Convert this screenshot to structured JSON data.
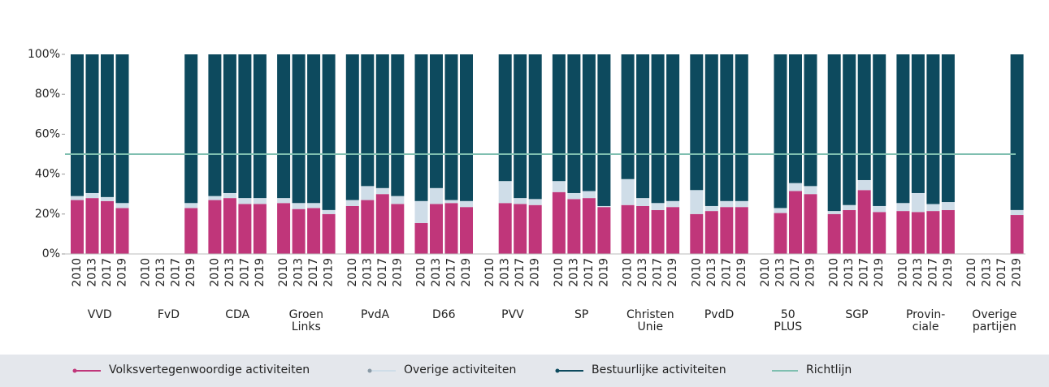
{
  "chart_data": {
    "type": "stacked_bar",
    "groups": [
      "VVD",
      "FvD",
      "CDA",
      "Groen\nLinks",
      "PvdA",
      "D66",
      "PVV",
      "SP",
      "Christen\nUnie",
      "PvdD",
      "50\nPLUS",
      "SGP",
      "Provin-\nciale",
      "Overige\npartijen"
    ],
    "categories": [
      "2010",
      "2013",
      "2017",
      "2019",
      "2010",
      "2013",
      "2017",
      "2019",
      "2010",
      "2013",
      "2017",
      "2019",
      "2010",
      "2013",
      "2017",
      "2019",
      "2010",
      "2013",
      "2017",
      "2019",
      "2010",
      "2013",
      "2017",
      "2019",
      "2010",
      "2013",
      "2017",
      "2019",
      "2010",
      "2013",
      "2017",
      "2019",
      "2010",
      "2013",
      "2017",
      "2019",
      "2010",
      "2013",
      "2017",
      "2019",
      "2010",
      "2013",
      "2017",
      "2019",
      "2010",
      "2013",
      "2017",
      "2019",
      "2010",
      "2013",
      "2017",
      "2019",
      "2010",
      "2013",
      "2017",
      "2019"
    ],
    "series": [
      {
        "name": "Volksvertegenwoordige activiteiten",
        "color": "#c0367a",
        "values": [
          27,
          28,
          26.5,
          23,
          null,
          null,
          null,
          23,
          27,
          28,
          25,
          25,
          25.5,
          22.5,
          23,
          20,
          24,
          27,
          30,
          25,
          15.5,
          25,
          25.5,
          23.5,
          null,
          25.5,
          25,
          24.5,
          31,
          27.5,
          28,
          23.5,
          24.5,
          24,
          22,
          23.5,
          20,
          21.5,
          23.5,
          23.5,
          null,
          20.5,
          31.5,
          30,
          20,
          22,
          32,
          21,
          21.5,
          21,
          21.5,
          22,
          null,
          null,
          null,
          19.5
        ]
      },
      {
        "name": "Overige activiteiten",
        "color": "#cfdde8",
        "values": [
          2,
          2.5,
          2,
          2.5,
          null,
          null,
          null,
          2.5,
          2,
          2.5,
          3,
          3,
          2.5,
          3,
          2.5,
          2,
          3,
          7,
          3,
          4,
          11,
          8,
          1.5,
          3,
          null,
          11,
          3,
          3,
          5.5,
          3,
          3.5,
          0.5,
          13,
          4,
          3.5,
          3,
          12,
          2.5,
          3,
          3,
          null,
          2.5,
          4,
          4,
          1.5,
          2.5,
          5,
          3,
          4,
          9.5,
          3.5,
          4,
          null,
          null,
          null,
          2.5
        ]
      },
      {
        "name": "Bestuurlijke activiteiten",
        "color": "#0d4a5e",
        "values": [
          71,
          69.5,
          71.5,
          74.5,
          null,
          null,
          null,
          74.5,
          71,
          69.5,
          72,
          72,
          72,
          74.5,
          74.5,
          78,
          73,
          66,
          67,
          71,
          73.5,
          67,
          73,
          73.5,
          null,
          63.5,
          72,
          72.5,
          63.5,
          69.5,
          68.5,
          76,
          62.5,
          72,
          74.5,
          73.5,
          68,
          76,
          73.5,
          73.5,
          null,
          77,
          64.5,
          66,
          78.5,
          75.5,
          63,
          76,
          74.5,
          69.5,
          75,
          74,
          null,
          null,
          null,
          78
        ]
      }
    ],
    "reference": {
      "name": "Richtlijn",
      "value": 50,
      "color": "#7fbfb0"
    },
    "ylim": [
      0,
      100
    ],
    "yticks": [
      {
        "value": 0,
        "label": "0%"
      },
      {
        "value": 20,
        "label": "20%"
      },
      {
        "value": 40,
        "label": "40%"
      },
      {
        "value": 60,
        "label": "60%"
      },
      {
        "value": 80,
        "label": "80%"
      },
      {
        "value": 100,
        "label": "100%"
      }
    ]
  }
}
